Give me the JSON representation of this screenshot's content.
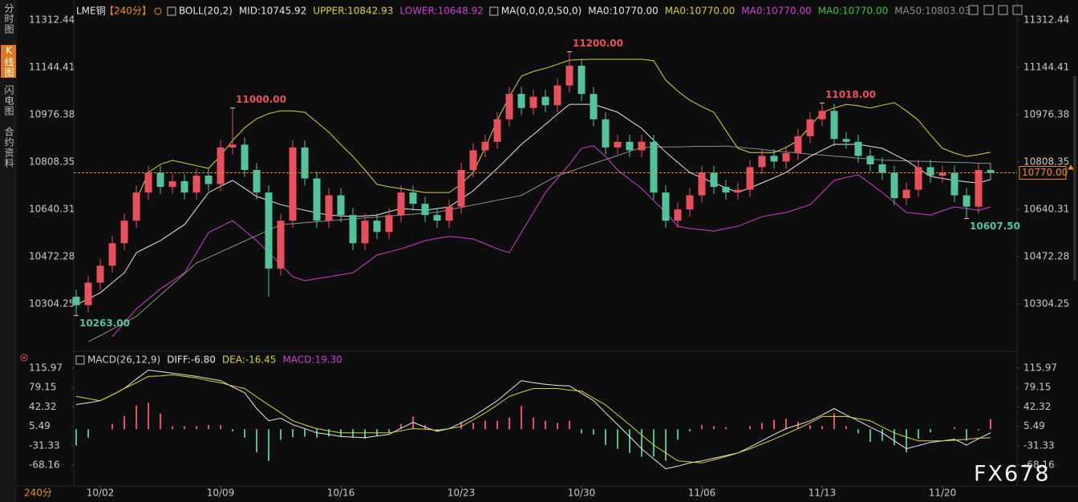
{
  "sidebar": {
    "tabs": [
      "分时图",
      "K线图",
      "闪电图",
      "合约资料"
    ],
    "active": 1
  },
  "period_label": "240分",
  "watermark": "FX678",
  "chart_data": [
    {
      "type": "candlestick",
      "symbol": "LME铜",
      "period": "【240分】",
      "legend": [
        {
          "label": "BOLL(20,2)",
          "color": "#e6e6e6"
        },
        {
          "label": "MID:10745.92",
          "color": "#e6e6e6"
        },
        {
          "label": "UPPER:10842.93",
          "color": "#d8d430"
        },
        {
          "label": "LOWER:10648.92",
          "color": "#d23cd2"
        },
        {
          "label": "MA(0,0,0,0,50,0)",
          "color": "#e6e6e6"
        },
        {
          "label": "MA0:10770.00",
          "color": "#e6e6e6"
        },
        {
          "label": "MA0:10770.00",
          "color": "#d8c830"
        },
        {
          "label": "MA0:10770.00",
          "color": "#d23cd2"
        },
        {
          "label": "MA0:10770.00",
          "color": "#3cc03c"
        },
        {
          "label": "MA50:10803.03",
          "color": "#8c8c8c"
        }
      ],
      "up_color": "#ea4f5e",
      "down_color": "#52c49c",
      "open": [
        10330,
        10300,
        10380,
        10440,
        10520,
        10600,
        10700,
        10770,
        10720,
        10740,
        10700,
        10760,
        10730,
        10860,
        10870,
        10780,
        10700,
        10430,
        10600,
        10860,
        10750,
        10600,
        10690,
        10620,
        10520,
        10600,
        10560,
        10620,
        10700,
        10660,
        10620,
        10600,
        10650,
        10780,
        10850,
        10880,
        10960,
        11050,
        11000,
        11040,
        11010,
        11080,
        11150,
        11050,
        10960,
        10860,
        10880,
        10850,
        10880,
        10700,
        10600,
        10640,
        10690,
        10770,
        10720,
        10700,
        10710,
        10790,
        10830,
        10810,
        10840,
        10900,
        10960,
        10990,
        10890,
        10880,
        10830,
        10800,
        10770,
        10680,
        10710,
        10790,
        10760,
        10770,
        10690,
        10650,
        10780
      ],
      "high": [
        10355,
        10405,
        10465,
        10545,
        10625,
        10725,
        10795,
        10795,
        10765,
        10765,
        10785,
        10785,
        10885,
        11000,
        10895,
        10805,
        10725,
        10625,
        10885,
        10885,
        10775,
        10715,
        10715,
        10645,
        10625,
        10625,
        10645,
        10725,
        10725,
        10685,
        10645,
        10675,
        10805,
        10875,
        10905,
        10985,
        11075,
        11075,
        11065,
        11065,
        11105,
        11200,
        11175,
        11075,
        10985,
        10905,
        10905,
        10905,
        10905,
        10725,
        10665,
        10715,
        10795,
        10795,
        10745,
        10735,
        10815,
        10855,
        10855,
        10865,
        10925,
        10985,
        11018,
        11015,
        10915,
        10905,
        10855,
        10825,
        10795,
        10735,
        10815,
        10815,
        10795,
        10795,
        10715,
        10805,
        10805
      ],
      "low": [
        10263,
        10275,
        10355,
        10415,
        10495,
        10575,
        10675,
        10695,
        10695,
        10675,
        10675,
        10705,
        10705,
        10835,
        10755,
        10675,
        10330,
        10405,
        10575,
        10725,
        10575,
        10575,
        10595,
        10495,
        10495,
        10535,
        10535,
        10595,
        10635,
        10595,
        10575,
        10575,
        10625,
        10755,
        10825,
        10855,
        10935,
        10975,
        10975,
        10985,
        10985,
        11055,
        11025,
        10935,
        10835,
        10835,
        10825,
        10825,
        10675,
        10575,
        10575,
        10615,
        10665,
        10695,
        10675,
        10675,
        10685,
        10765,
        10785,
        10785,
        10815,
        10875,
        10935,
        10865,
        10855,
        10805,
        10775,
        10745,
        10655,
        10655,
        10685,
        10735,
        10735,
        10665,
        10607.5,
        10625,
        10745
      ],
      "close": [
        10300,
        10380,
        10440,
        10520,
        10600,
        10700,
        10770,
        10720,
        10740,
        10700,
        10760,
        10730,
        10860,
        10870,
        10780,
        10700,
        10430,
        10600,
        10860,
        10750,
        10600,
        10690,
        10620,
        10520,
        10600,
        10560,
        10620,
        10700,
        10660,
        10620,
        10600,
        10650,
        10780,
        10850,
        10880,
        10960,
        11050,
        11000,
        11040,
        11010,
        11080,
        11150,
        11050,
        10960,
        10860,
        10880,
        10850,
        10880,
        10700,
        10600,
        10640,
        10690,
        10770,
        10720,
        10700,
        10710,
        10790,
        10830,
        10810,
        10840,
        10900,
        10960,
        10990,
        10890,
        10880,
        10830,
        10800,
        10770,
        10680,
        10710,
        10790,
        10760,
        10770,
        10690,
        10650,
        10780,
        10770
      ],
      "series": [
        {
          "color": "#8c8c8c",
          "values": [
            null,
            10170,
            10192,
            10215,
            10237,
            10260,
            10298,
            10336,
            10374,
            10412,
            10450,
            10469,
            10489,
            10508,
            10528,
            10547,
            10567,
            10586,
            10589,
            10593,
            10596,
            10600,
            10603,
            10607,
            10610,
            10613,
            10617,
            10620,
            10623,
            10627,
            10630,
            10639,
            10647,
            10656,
            10664,
            10673,
            10681,
            10690,
            10713,
            10737,
            10760,
            10774,
            10789,
            10803,
            10817,
            10831,
            10846,
            10860,
            10861,
            10862,
            10862,
            10863,
            10864,
            10864,
            10865,
            10861,
            10857,
            10853,
            10848,
            10844,
            10840,
            10836,
            10833,
            10829,
            10826,
            10822,
            10819,
            10815,
            10814,
            10812,
            10811,
            10810,
            10808,
            10807,
            10806,
            10804,
            10803.03
          ]
        },
        {
          "color": "#d8d430",
          "values": [
            null,
            null,
            null,
            null,
            null,
            10672,
            10771,
            10800,
            10814,
            10805,
            10795,
            10786,
            10830,
            10885,
            10930,
            10962,
            10980,
            10990,
            10990,
            10985,
            10950,
            10914,
            10870,
            10828,
            10780,
            10729,
            10720,
            10714,
            10707,
            10700,
            10700,
            10700,
            10730,
            10771,
            10860,
            10956,
            11040,
            11113,
            11130,
            11141,
            11155,
            11170,
            11172,
            11173,
            11173,
            11173,
            11173,
            11173,
            11168,
            11099,
            11060,
            11028,
            11005,
            10985,
            10920,
            10857,
            10842,
            10842,
            10842,
            10860,
            10885,
            10935,
            10985,
            11000,
            11013,
            11008,
            11000,
            11010,
            11019,
            10990,
            10956,
            10905,
            10857,
            10840,
            10828,
            10835,
            10842.93
          ]
        },
        {
          "color": "#d23cd2",
          "values": [
            null,
            null,
            null,
            10187,
            10237,
            10287,
            10322,
            10358,
            10386,
            10415,
            10486,
            10558,
            10579,
            10600,
            10565,
            10529,
            10486,
            10444,
            10401,
            10387,
            10394,
            10401,
            10408,
            10415,
            10446,
            10478,
            10489,
            10500,
            10514,
            10529,
            10537,
            10544,
            10540,
            10535,
            10518,
            10500,
            10486,
            10558,
            10629,
            10700,
            10750,
            10800,
            10857,
            10866,
            10828,
            10780,
            10747,
            10714,
            10671,
            10629,
            10580,
            10572,
            10568,
            10563,
            10572,
            10580,
            10597,
            10614,
            10622,
            10629,
            10643,
            10657,
            10700,
            10743,
            10753,
            10763,
            10732,
            10700,
            10665,
            10629,
            10625,
            10620,
            10635,
            10649,
            10643,
            10637,
            10648.92
          ]
        },
        {
          "color": "#e6e6e6",
          "values": [
            10301,
            10322,
            10344,
            10380,
            10415,
            10486,
            10508,
            10529,
            10558,
            10586,
            10643,
            10700,
            10722,
            10743,
            10715,
            10686,
            10672,
            10657,
            10647,
            10637,
            10628,
            10620,
            10617,
            10615,
            10617,
            10620,
            10632,
            10643,
            10640,
            10637,
            10643,
            10649,
            10678,
            10706,
            10746,
            10786,
            10828,
            10871,
            10906,
            10942,
            10978,
            11013,
            11013,
            11013,
            10999,
            10985,
            10956,
            10928,
            10885,
            10843,
            10807,
            10771,
            10752,
            10734,
            10717,
            10700,
            10717,
            10734,
            10752,
            10771,
            10800,
            10828,
            10850,
            10871,
            10871,
            10871,
            10864,
            10857,
            10835,
            10814,
            10785,
            10757,
            10750,
            10743,
            10738,
            10734,
            10745.92
          ]
        }
      ],
      "annotations": [
        {
          "label": "10263.00",
          "index": 0,
          "value": 10263,
          "side": "low",
          "color": "#52c49c"
        },
        {
          "label": "11000.00",
          "index": 13,
          "value": 11000,
          "side": "high",
          "color": "#ea4f5e"
        },
        {
          "label": "11200.00",
          "index": 41,
          "value": 11200,
          "side": "high",
          "color": "#ea4f5e"
        },
        {
          "label": "11018.00",
          "index": 62,
          "value": 11018,
          "side": "high",
          "color": "#ea4f5e"
        },
        {
          "label": "10607.50",
          "index": 74,
          "value": 10607.5,
          "side": "low",
          "color": "#52c49c"
        }
      ],
      "last_price": {
        "value": 10770,
        "label": "10770.00",
        "color": "#e8901c"
      },
      "xlim": [
        -0.2,
        78.2
      ],
      "xticks": [
        {
          "value": 2,
          "label": "10/02"
        },
        {
          "value": 12,
          "label": "10/09"
        },
        {
          "value": 22,
          "label": "10/16"
        },
        {
          "value": 32,
          "label": "10/23"
        },
        {
          "value": 42,
          "label": "10/30"
        },
        {
          "value": 52,
          "label": "11/06"
        },
        {
          "value": 62,
          "label": "11/13"
        },
        {
          "value": 72,
          "label": "11/20"
        }
      ],
      "ylim": [
        10145,
        11355
      ],
      "yticks": [
        11312.44,
        11144.41,
        10976.38,
        10808.35,
        10640.31,
        10472.28,
        10304.25
      ]
    },
    {
      "type": "macd",
      "legend": [
        {
          "label": "MACD(26,12,9)",
          "color": "#d0d0d0"
        },
        {
          "label": "DIFF:-6.80",
          "color": "#e6e6e6"
        },
        {
          "label": "DEA:-16.45",
          "color": "#d8d430"
        },
        {
          "label": "MACD:19.30",
          "color": "#d23cd2"
        }
      ],
      "up_color": "#e8505e",
      "down_color": "#4fbf90",
      "histogram": [
        -31,
        -16,
        0,
        10,
        25,
        45,
        50,
        30,
        6,
        6,
        6,
        8,
        8,
        -4,
        -16,
        -44,
        -60,
        -20,
        -15,
        -14,
        -16,
        -14,
        -14,
        -16,
        -18,
        -12,
        -6,
        10,
        24,
        8,
        -4,
        0,
        14,
        12,
        16,
        16,
        22,
        44,
        22,
        16,
        12,
        16,
        -8,
        -10,
        -30,
        -37,
        -45,
        -52,
        -52,
        -60,
        -20,
        -4,
        8,
        6,
        4,
        0,
        6,
        12,
        18,
        20,
        14,
        8,
        6,
        30,
        6,
        -8,
        -24,
        -22,
        -30,
        -44,
        -18,
        -6,
        0,
        4,
        -22,
        -2,
        19.3
      ],
      "series": [
        {
          "color": "#e6e6e6",
          "values": [
            46.6,
            50,
            54,
            65,
            77,
            95,
            112,
            109,
            106,
            103,
            100,
            96,
            92,
            80,
            69,
            39,
            16,
            21,
            8.5,
            1,
            -7,
            -10,
            -14,
            -15,
            -16,
            -13,
            -10,
            2,
            13,
            4,
            -4,
            1,
            12,
            24,
            39,
            54,
            73,
            92,
            88,
            85,
            83,
            82,
            68,
            54,
            31,
            8.5,
            -14,
            -37,
            -56,
            -75,
            -70,
            -64,
            -60,
            -55,
            -50,
            -45,
            -34,
            -22,
            -10,
            1,
            8,
            16,
            27,
            39,
            27,
            16,
            4,
            -7,
            -22,
            -37,
            -31,
            -25,
            -22,
            -19,
            -30,
            -18,
            -6.8
          ]
        },
        {
          "color": "#d8d430",
          "values": [
            62,
            58,
            54,
            65,
            77,
            88,
            100,
            101,
            103,
            100,
            97,
            92,
            88,
            82,
            77,
            61,
            46,
            31,
            16,
            8,
            1,
            -3,
            -7,
            -7,
            -7,
            -7,
            -7,
            -3,
            1,
            0,
            -2,
            1,
            5,
            18,
            31,
            46,
            62,
            70,
            77,
            77,
            77,
            74,
            72,
            59,
            46,
            27,
            8.5,
            -11,
            -30,
            -45,
            -60,
            -62,
            -64,
            -58,
            -52,
            -45,
            -37,
            -28,
            -19,
            -9,
            1,
            12,
            24,
            24,
            24,
            20,
            16,
            4,
            -7,
            -15,
            -22,
            -22,
            -22,
            -21,
            -19,
            -17,
            -16.45
          ]
        }
      ],
      "xlim": [
        -0.2,
        78.2
      ],
      "ylim": [
        -106,
        137
      ],
      "yticks": [
        115.97,
        79.15,
        42.32,
        5.49,
        -31.33,
        -68.16
      ]
    }
  ]
}
